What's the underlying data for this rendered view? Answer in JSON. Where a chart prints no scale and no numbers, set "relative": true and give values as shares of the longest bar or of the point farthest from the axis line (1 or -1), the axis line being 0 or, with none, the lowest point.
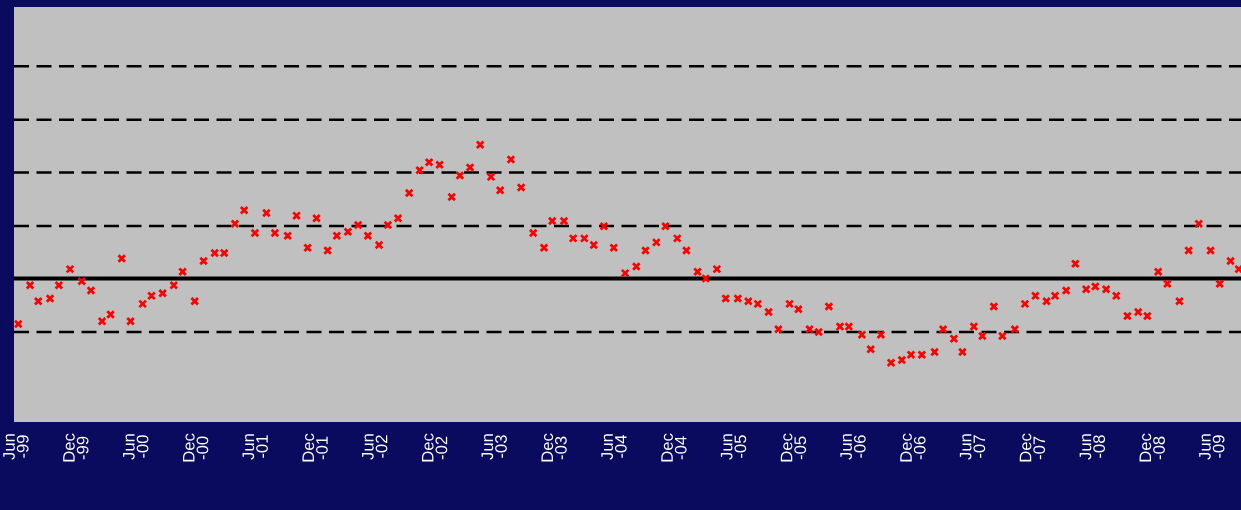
{
  "chart_data": {
    "type": "scatter",
    "relative": true,
    "marker": "cross",
    "grid": false,
    "x": [
      "1999-06-04",
      "1999-07-10",
      "1999-08-04",
      "1999-09-09",
      "1999-10-06",
      "1999-11-09",
      "1999-12-15",
      "2000-01-12",
      "2000-02-15",
      "2000-03-12",
      "2000-04-15",
      "2000-05-12",
      "2000-06-18",
      "2000-07-15",
      "2000-08-18",
      "2000-09-21",
      "2000-10-18",
      "2000-11-24",
      "2000-12-21",
      "2001-01-24",
      "2001-02-22",
      "2001-03-27",
      "2001-04-24",
      "2001-05-27",
      "2001-07-01",
      "2001-07-27",
      "2001-09-04",
      "2001-10-01",
      "2001-11-04",
      "2001-12-01",
      "2002-01-04",
      "2002-02-01",
      "2002-03-07",
      "2002-04-07",
      "2002-05-07",
      "2002-06-10",
      "2002-07-07",
      "2002-08-07",
      "2002-09-10",
      "2002-10-12",
      "2002-11-10",
      "2002-12-12",
      "2003-01-18",
      "2003-02-12",
      "2003-03-15",
      "2003-04-15",
      "2003-05-18",
      "2003-06-15",
      "2003-07-18",
      "2003-08-18",
      "2003-09-24",
      "2003-10-27",
      "2003-11-21",
      "2003-12-27",
      "2004-01-24",
      "2004-02-27",
      "2004-03-27",
      "2004-04-27",
      "2004-05-27",
      "2004-07-01",
      "2004-08-04",
      "2004-09-01",
      "2004-10-04",
      "2004-11-01",
      "2004-12-07",
      "2005-01-04",
      "2005-02-07",
      "2005-03-04",
      "2005-04-07",
      "2005-05-04",
      "2005-06-10",
      "2005-07-12",
      "2005-08-10",
      "2005-09-12",
      "2005-10-12",
      "2005-11-15",
      "2005-12-12",
      "2006-01-15",
      "2006-02-12",
      "2006-03-15",
      "2006-04-18",
      "2006-05-15",
      "2006-06-24",
      "2006-07-21",
      "2006-08-21",
      "2006-09-21",
      "2006-10-24",
      "2006-11-21",
      "2006-12-24",
      "2007-02-01",
      "2007-02-27",
      "2007-04-01",
      "2007-04-27",
      "2007-06-01",
      "2007-06-27",
      "2007-08-01",
      "2007-08-27",
      "2007-10-04",
      "2007-11-04",
      "2007-12-06",
      "2008-01-09",
      "2008-02-04",
      "2008-03-09",
      "2008-04-06",
      "2008-05-09",
      "2008-06-06",
      "2008-07-09",
      "2008-08-09",
      "2008-09-12",
      "2008-10-15",
      "2008-11-12",
      "2008-12-15",
      "2009-01-12",
      "2009-02-18",
      "2009-03-18",
      "2009-04-18",
      "2009-05-24",
      "2009-06-21",
      "2009-07-24",
      "2009-08-18"
    ],
    "xlim": [
      "1999-05-22",
      "2009-08-25"
    ],
    "xticks": [
      {
        "value": "1999-06",
        "label": "Jun\n-99"
      },
      {
        "value": "1999-12",
        "label": "Dec\n-99"
      },
      {
        "value": "2000-06",
        "label": "Jun\n-00"
      },
      {
        "value": "2000-12",
        "label": "Dec\n-00"
      },
      {
        "value": "2001-06",
        "label": "Jun\n-01"
      },
      {
        "value": "2001-12",
        "label": "Dec\n-01"
      },
      {
        "value": "2002-06",
        "label": "Jun\n-02"
      },
      {
        "value": "2002-12",
        "label": "Dec\n-02"
      },
      {
        "value": "2003-06",
        "label": "Jun\n-03"
      },
      {
        "value": "2003-12",
        "label": "Dec\n-03"
      },
      {
        "value": "2004-06",
        "label": "Jun\n-04"
      },
      {
        "value": "2004-12",
        "label": "Dec\n-04"
      },
      {
        "value": "2005-06",
        "label": "Jun\n-05"
      },
      {
        "value": "2005-12",
        "label": "Dec\n-05"
      },
      {
        "value": "2006-06",
        "label": "Jun\n-06"
      },
      {
        "value": "2006-12",
        "label": "Dec\n-06"
      },
      {
        "value": "2007-06",
        "label": "Jun\n-07"
      },
      {
        "value": "2007-12",
        "label": "Dec\n-07"
      },
      {
        "value": "2008-06",
        "label": "Jun\n-08"
      },
      {
        "value": "2008-12",
        "label": "Dec\n-08"
      },
      {
        "value": "2009-06",
        "label": "Jun\n-09"
      }
    ],
    "tick_labels": "x",
    "series": [
      {
        "color": "#ff0000",
        "values": [
          -0.34,
          -0.05,
          -0.17,
          -0.15,
          -0.05,
          0.07,
          -0.02,
          -0.09,
          -0.32,
          -0.27,
          0.15,
          -0.32,
          -0.19,
          -0.13,
          -0.11,
          -0.05,
          0.05,
          -0.17,
          0.13,
          0.19,
          0.19,
          0.41,
          0.51,
          0.34,
          0.49,
          0.34,
          0.32,
          0.47,
          0.23,
          0.45,
          0.21,
          0.32,
          0.35,
          0.4,
          0.32,
          0.25,
          0.4,
          0.45,
          0.64,
          0.81,
          0.87,
          0.85,
          0.61,
          0.77,
          0.83,
          1.0,
          0.76,
          0.66,
          0.89,
          0.68,
          0.34,
          0.23,
          0.43,
          0.43,
          0.3,
          0.3,
          0.25,
          0.39,
          0.23,
          0.04,
          0.09,
          0.21,
          0.27,
          0.39,
          0.3,
          0.21,
          0.05,
          0.0,
          0.07,
          -0.15,
          -0.15,
          -0.17,
          -0.19,
          -0.25,
          -0.38,
          -0.19,
          -0.23,
          -0.38,
          -0.4,
          -0.21,
          -0.36,
          -0.36,
          -0.42,
          -0.53,
          -0.42,
          -0.63,
          -0.61,
          -0.57,
          -0.57,
          -0.55,
          -0.38,
          -0.45,
          -0.55,
          -0.36,
          -0.43,
          -0.21,
          -0.43,
          -0.38,
          -0.19,
          -0.13,
          -0.17,
          -0.13,
          -0.09,
          0.11,
          -0.08,
          -0.06,
          -0.08,
          -0.13,
          -0.28,
          -0.25,
          -0.28,
          0.05,
          -0.04,
          -0.17,
          0.21,
          0.41,
          0.21,
          -0.04,
          0.13,
          0.07
        ]
      }
    ],
    "ref_lines": [
      {
        "axis": "y",
        "value": 1.587,
        "color": "#000000",
        "line_style": "dashed"
      },
      {
        "axis": "y",
        "value": 1.187,
        "color": "#000000",
        "line_style": "dashed"
      },
      {
        "axis": "y",
        "value": 0.793,
        "color": "#000000",
        "line_style": "dashed"
      },
      {
        "axis": "y",
        "value": 0.393,
        "color": "#000000",
        "line_style": "dashed"
      },
      {
        "axis": "y",
        "value": 0,
        "color": "#000000",
        "line_style": "solid"
      },
      {
        "axis": "y",
        "value": -0.4,
        "color": "#000000",
        "line_style": "dashed"
      }
    ]
  }
}
